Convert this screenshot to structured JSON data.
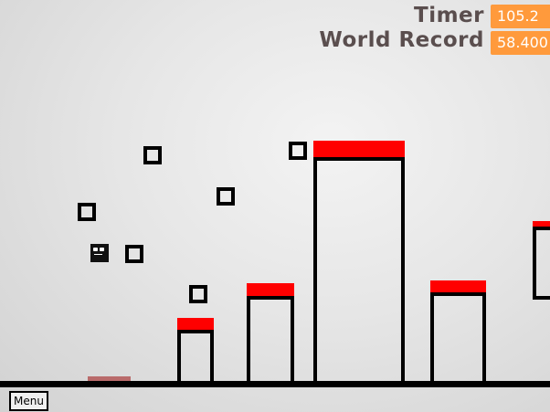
{
  "hud": {
    "timer_label": "Timer",
    "timer_value": "105.2",
    "record_label": "World Record",
    "record_value": "58.400"
  },
  "menu_button_label": "Menu",
  "colors": {
    "hud_value_bg": "#ff9a3c",
    "hud_label": "#5a4e4e",
    "platform_cap": "#ff0000",
    "outline": "#000000",
    "pad": "#b96b6b"
  }
}
